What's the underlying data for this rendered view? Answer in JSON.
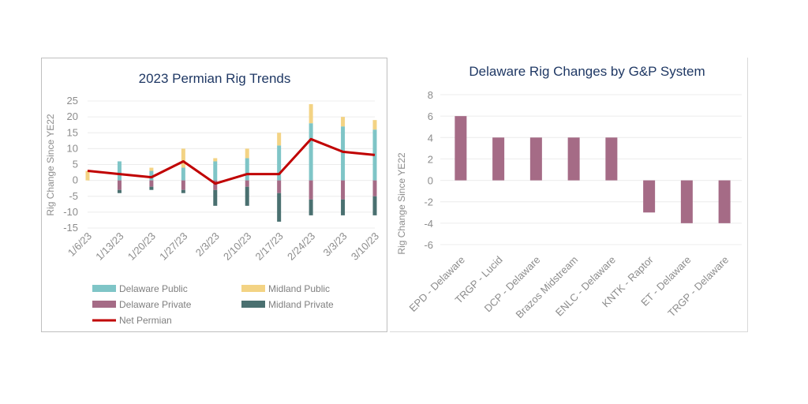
{
  "chart_data": [
    {
      "type": "bar",
      "title": "2023 Permian Rig Trends",
      "ylabel": "Rig Change Since YE22",
      "xlabel": "",
      "ylim": [
        -15,
        25
      ],
      "yticks": [
        -15,
        -10,
        -5,
        0,
        5,
        10,
        15,
        20,
        25
      ],
      "categories": [
        "1/6/23",
        "1/13/23",
        "1/20/23",
        "1/27/23",
        "2/3/23",
        "2/10/23",
        "2/17/23",
        "2/24/23",
        "3/3/23",
        "3/10/23"
      ],
      "stacked": true,
      "grid": true,
      "legend_position": "bottom",
      "series": [
        {
          "name": "Delaware Public",
          "color": "#7fc5c7",
          "values": [
            0,
            6,
            3,
            4,
            6,
            7,
            11,
            18,
            17,
            16
          ]
        },
        {
          "name": "Midland Public",
          "color": "#f3d384",
          "values": [
            3,
            0,
            1,
            6,
            1,
            3,
            4,
            6,
            3,
            3
          ]
        },
        {
          "name": "Delaware Private",
          "color": "#a56b86",
          "values": [
            0,
            -3,
            -2,
            -3,
            -3,
            -2,
            -4,
            -6,
            -6,
            -5
          ]
        },
        {
          "name": "Midland Private",
          "color": "#4a7070",
          "values": [
            0,
            -1,
            -1,
            -1,
            -5,
            -6,
            -9,
            -5,
            -5,
            -6
          ]
        }
      ],
      "line_series": {
        "name": "Net Permian",
        "color": "#c00000",
        "values": [
          3,
          2,
          1,
          6,
          -1,
          2,
          2,
          13,
          9,
          8
        ]
      }
    },
    {
      "type": "bar",
      "title": "Delaware Rig Changes by G&P System",
      "ylabel": "Rig Change Since YE22",
      "xlabel": "",
      "ylim": [
        -6,
        8
      ],
      "yticks": [
        -6,
        -4,
        -2,
        0,
        2,
        4,
        6,
        8
      ],
      "grid": true,
      "color": "#a56b86",
      "categories": [
        "EPD - Delaware",
        "TRGP - Lucid",
        "DCP - Delaware",
        "Brazos Midstream",
        "ENLC - Delaware",
        "KNTK - Raptor",
        "ET - Delaware",
        "TRGP - Delaware"
      ],
      "values": [
        6,
        4,
        4,
        4,
        4,
        -3,
        -4,
        -4
      ]
    }
  ]
}
